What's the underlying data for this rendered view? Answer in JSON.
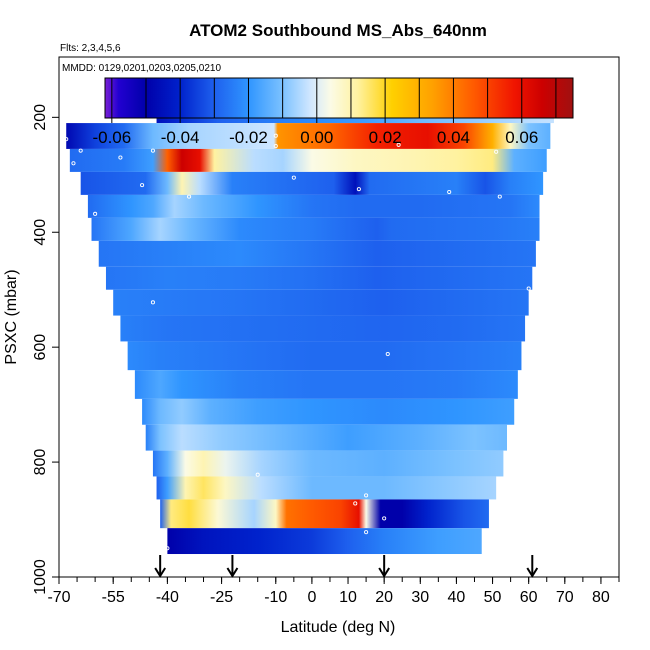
{
  "title": "ATOM2 Southbound MS_Abs_640nm",
  "subtitle": "Flts: 2,3,4,5,6",
  "mmdd_label": "MMDD: 0129,0201,0203,0205,0210",
  "xlabel": "Latitude (deg N)",
  "ylabel": "PSXC (mbar)",
  "chart_data": {
    "type": "heatmap",
    "title": "ATOM2 Southbound MS_Abs_640nm",
    "xlabel": "Latitude (deg N)",
    "ylabel": "PSXC (mbar)",
    "xlim": [
      -70,
      85
    ],
    "ylim": [
      1000,
      95
    ],
    "y_reversed": true,
    "x_ticks": [
      "-70",
      "-55",
      "-40",
      "-25",
      "-10",
      "0",
      "10",
      "20",
      "30",
      "40",
      "50",
      "60",
      "70",
      "80"
    ],
    "x_tick_values": [
      -70,
      -55,
      -40,
      -25,
      -10,
      0,
      10,
      20,
      30,
      40,
      50,
      60,
      70,
      80
    ],
    "y_ticks": [
      200,
      400,
      600,
      800,
      1000
    ],
    "colorbar": {
      "ticks": [
        "-0.06",
        "-0.04",
        "-0.02",
        "0.00",
        "0.02",
        "0.04",
        "0.06"
      ],
      "tick_values": [
        -0.06,
        -0.04,
        -0.02,
        0.0,
        0.02,
        0.04,
        0.06
      ],
      "range": [
        -0.062,
        0.075
      ],
      "stops": [
        {
          "v": -0.062,
          "c": "#7a1fd6"
        },
        {
          "v": -0.058,
          "c": "#2200d0"
        },
        {
          "v": -0.05,
          "c": "#0000aa"
        },
        {
          "v": -0.04,
          "c": "#0022cc"
        },
        {
          "v": -0.03,
          "c": "#1e60ee"
        },
        {
          "v": -0.02,
          "c": "#2f95ff"
        },
        {
          "v": -0.01,
          "c": "#7cc2ff"
        },
        {
          "v": -0.002,
          "c": "#cfe6ff"
        },
        {
          "v": 0.004,
          "c": "#fbfbe6"
        },
        {
          "v": 0.012,
          "c": "#fff2a0"
        },
        {
          "v": 0.022,
          "c": "#ffd000"
        },
        {
          "v": 0.034,
          "c": "#ffa000"
        },
        {
          "v": 0.046,
          "c": "#ff5a00"
        },
        {
          "v": 0.058,
          "c": "#f01400"
        },
        {
          "v": 0.066,
          "c": "#cc0000"
        },
        {
          "v": 0.075,
          "c": "#a01010"
        }
      ]
    },
    "flight_markers_lat": [
      -42,
      -22,
      20,
      61
    ],
    "bands": [
      {
        "p_top": 165,
        "p_bot": 210,
        "lat_min": -43,
        "lat_max": 67,
        "segments": [
          {
            "lat": -43,
            "v": -0.045
          },
          {
            "lat": -36,
            "v": -0.038
          },
          {
            "lat": -26,
            "v": -0.03
          },
          {
            "lat": -12,
            "v": -0.025
          },
          {
            "lat": 0,
            "v": -0.022
          },
          {
            "lat": 15,
            "v": -0.018
          },
          {
            "lat": 30,
            "v": -0.012
          },
          {
            "lat": 45,
            "v": -0.008
          },
          {
            "lat": 60,
            "v": -0.004
          },
          {
            "lat": 67,
            "v": -0.003
          }
        ]
      },
      {
        "p_top": 210,
        "p_bot": 255,
        "lat_min": -68,
        "lat_max": 66,
        "segments": [
          {
            "lat": -68,
            "v": -0.048
          },
          {
            "lat": -60,
            "v": -0.035
          },
          {
            "lat": -52,
            "v": -0.028
          },
          {
            "lat": -44,
            "v": -0.012
          },
          {
            "lat": -34,
            "v": -0.006
          },
          {
            "lat": -22,
            "v": -0.004
          },
          {
            "lat": -10.5,
            "v": -0.002
          },
          {
            "lat": -9.5,
            "v": 0.036
          },
          {
            "lat": 5,
            "v": 0.044
          },
          {
            "lat": 18,
            "v": 0.056
          },
          {
            "lat": 32,
            "v": 0.06
          },
          {
            "lat": 42,
            "v": 0.05
          },
          {
            "lat": 50,
            "v": 0.03
          },
          {
            "lat": 55,
            "v": 0.008
          },
          {
            "lat": 60,
            "v": -0.01
          },
          {
            "lat": 66,
            "v": -0.014
          }
        ]
      },
      {
        "p_top": 255,
        "p_bot": 295,
        "lat_min": -67,
        "lat_max": 65,
        "segments": [
          {
            "lat": -67,
            "v": -0.028
          },
          {
            "lat": -52,
            "v": -0.025
          },
          {
            "lat": -44,
            "v": -0.018
          },
          {
            "lat": -40,
            "v": 0.045
          },
          {
            "lat": -36,
            "v": 0.066
          },
          {
            "lat": -31,
            "v": 0.06
          },
          {
            "lat": -27,
            "v": 0.012
          },
          {
            "lat": -16,
            "v": -0.004
          },
          {
            "lat": -8,
            "v": -0.006
          },
          {
            "lat": 0,
            "v": 0.004
          },
          {
            "lat": 12,
            "v": 0.008
          },
          {
            "lat": 28,
            "v": 0.01
          },
          {
            "lat": 40,
            "v": 0.012
          },
          {
            "lat": 50,
            "v": 0.014
          },
          {
            "lat": 56,
            "v": -0.014
          },
          {
            "lat": 65,
            "v": -0.018
          }
        ]
      },
      {
        "p_top": 295,
        "p_bot": 335,
        "lat_min": -64,
        "lat_max": 64,
        "segments": [
          {
            "lat": -64,
            "v": -0.032
          },
          {
            "lat": -46,
            "v": -0.028
          },
          {
            "lat": -40,
            "v": -0.012
          },
          {
            "lat": -36,
            "v": 0.01
          },
          {
            "lat": -31,
            "v": -0.004
          },
          {
            "lat": -22,
            "v": -0.024
          },
          {
            "lat": 6,
            "v": -0.03
          },
          {
            "lat": 12,
            "v": -0.045
          },
          {
            "lat": 16,
            "v": -0.028
          },
          {
            "lat": 40,
            "v": -0.024
          },
          {
            "lat": 48,
            "v": -0.032
          },
          {
            "lat": 55,
            "v": -0.024
          },
          {
            "lat": 64,
            "v": -0.02
          }
        ]
      },
      {
        "p_top": 335,
        "p_bot": 375,
        "lat_min": -62,
        "lat_max": 63,
        "segments": [
          {
            "lat": -62,
            "v": -0.028
          },
          {
            "lat": -50,
            "v": -0.02
          },
          {
            "lat": -44,
            "v": -0.016
          },
          {
            "lat": -38,
            "v": -0.006
          },
          {
            "lat": -30,
            "v": -0.012
          },
          {
            "lat": -15,
            "v": -0.02
          },
          {
            "lat": 0,
            "v": -0.026
          },
          {
            "lat": 12,
            "v": -0.028
          },
          {
            "lat": 30,
            "v": -0.028
          },
          {
            "lat": 55,
            "v": -0.026
          },
          {
            "lat": 63,
            "v": -0.022
          }
        ]
      },
      {
        "p_top": 375,
        "p_bot": 415,
        "lat_min": -61,
        "lat_max": 63,
        "segments": [
          {
            "lat": -61,
            "v": -0.026
          },
          {
            "lat": -50,
            "v": -0.016
          },
          {
            "lat": -42,
            "v": -0.006
          },
          {
            "lat": -34,
            "v": -0.012
          },
          {
            "lat": -20,
            "v": -0.022
          },
          {
            "lat": 0,
            "v": -0.025
          },
          {
            "lat": 18,
            "v": -0.03
          },
          {
            "lat": 22,
            "v": -0.028
          },
          {
            "lat": 50,
            "v": -0.026
          },
          {
            "lat": 63,
            "v": -0.024
          }
        ]
      },
      {
        "p_top": 415,
        "p_bot": 460,
        "lat_min": -59,
        "lat_max": 62,
        "segments": [
          {
            "lat": -59,
            "v": -0.026
          },
          {
            "lat": -40,
            "v": -0.024
          },
          {
            "lat": -20,
            "v": -0.022
          },
          {
            "lat": 0,
            "v": -0.026
          },
          {
            "lat": 18,
            "v": -0.03
          },
          {
            "lat": 40,
            "v": -0.028
          },
          {
            "lat": 62,
            "v": -0.026
          }
        ]
      },
      {
        "p_top": 460,
        "p_bot": 500,
        "lat_min": -57,
        "lat_max": 61,
        "segments": [
          {
            "lat": -57,
            "v": -0.026
          },
          {
            "lat": -40,
            "v": -0.024
          },
          {
            "lat": -20,
            "v": -0.025
          },
          {
            "lat": 0,
            "v": -0.027
          },
          {
            "lat": 18,
            "v": -0.03
          },
          {
            "lat": 40,
            "v": -0.028
          },
          {
            "lat": 61,
            "v": -0.026
          }
        ]
      },
      {
        "p_top": 500,
        "p_bot": 545,
        "lat_min": -55,
        "lat_max": 60,
        "segments": [
          {
            "lat": -55,
            "v": -0.024
          },
          {
            "lat": -40,
            "v": -0.025
          },
          {
            "lat": -20,
            "v": -0.026
          },
          {
            "lat": 0,
            "v": -0.028
          },
          {
            "lat": 20,
            "v": -0.03
          },
          {
            "lat": 40,
            "v": -0.028
          },
          {
            "lat": 60,
            "v": -0.026
          }
        ]
      },
      {
        "p_top": 545,
        "p_bot": 590,
        "lat_min": -53,
        "lat_max": 59,
        "segments": [
          {
            "lat": -53,
            "v": -0.024
          },
          {
            "lat": -40,
            "v": -0.026
          },
          {
            "lat": -20,
            "v": -0.027
          },
          {
            "lat": 0,
            "v": -0.028
          },
          {
            "lat": 20,
            "v": -0.029
          },
          {
            "lat": 40,
            "v": -0.028
          },
          {
            "lat": 59,
            "v": -0.026
          }
        ]
      },
      {
        "p_top": 590,
        "p_bot": 640,
        "lat_min": -51,
        "lat_max": 58,
        "segments": [
          {
            "lat": -51,
            "v": -0.022
          },
          {
            "lat": -42,
            "v": -0.024
          },
          {
            "lat": -20,
            "v": -0.026
          },
          {
            "lat": 0,
            "v": -0.028
          },
          {
            "lat": 20,
            "v": -0.028
          },
          {
            "lat": 40,
            "v": -0.026
          },
          {
            "lat": 58,
            "v": -0.024
          }
        ]
      },
      {
        "p_top": 640,
        "p_bot": 690,
        "lat_min": -49,
        "lat_max": 57,
        "segments": [
          {
            "lat": -49,
            "v": -0.022
          },
          {
            "lat": -42,
            "v": -0.016
          },
          {
            "lat": -36,
            "v": -0.02
          },
          {
            "lat": -20,
            "v": -0.024
          },
          {
            "lat": 0,
            "v": -0.026
          },
          {
            "lat": 20,
            "v": -0.026
          },
          {
            "lat": 40,
            "v": -0.025
          },
          {
            "lat": 57,
            "v": -0.022
          }
        ]
      },
      {
        "p_top": 690,
        "p_bot": 735,
        "lat_min": -47,
        "lat_max": 56,
        "segments": [
          {
            "lat": -47,
            "v": -0.022
          },
          {
            "lat": -42,
            "v": -0.012
          },
          {
            "lat": -36,
            "v": -0.008
          },
          {
            "lat": -28,
            "v": -0.014
          },
          {
            "lat": -15,
            "v": -0.018
          },
          {
            "lat": 0,
            "v": -0.02
          },
          {
            "lat": 20,
            "v": -0.022
          },
          {
            "lat": 40,
            "v": -0.02
          },
          {
            "lat": 56,
            "v": -0.018
          }
        ]
      },
      {
        "p_top": 735,
        "p_bot": 780,
        "lat_min": -46,
        "lat_max": 54,
        "segments": [
          {
            "lat": -46,
            "v": -0.024
          },
          {
            "lat": -42,
            "v": -0.01
          },
          {
            "lat": -36,
            "v": -0.004
          },
          {
            "lat": -25,
            "v": -0.008
          },
          {
            "lat": -10,
            "v": -0.012
          },
          {
            "lat": 10,
            "v": -0.018
          },
          {
            "lat": 30,
            "v": -0.014
          },
          {
            "lat": 45,
            "v": -0.01
          },
          {
            "lat": 54,
            "v": -0.012
          }
        ]
      },
      {
        "p_top": 780,
        "p_bot": 825,
        "lat_min": -44,
        "lat_max": 53,
        "segments": [
          {
            "lat": -44,
            "v": -0.026
          },
          {
            "lat": -40,
            "v": -0.014
          },
          {
            "lat": -35,
            "v": 0.004
          },
          {
            "lat": -30,
            "v": 0.01
          },
          {
            "lat": -24,
            "v": 0.002
          },
          {
            "lat": -14,
            "v": -0.006
          },
          {
            "lat": 0,
            "v": -0.012
          },
          {
            "lat": 20,
            "v": -0.014
          },
          {
            "lat": 40,
            "v": -0.01
          },
          {
            "lat": 53,
            "v": -0.008
          }
        ]
      },
      {
        "p_top": 825,
        "p_bot": 865,
        "lat_min": -43,
        "lat_max": 51,
        "segments": [
          {
            "lat": -43,
            "v": -0.03
          },
          {
            "lat": -40,
            "v": -0.018
          },
          {
            "lat": -35,
            "v": 0.01
          },
          {
            "lat": -30,
            "v": 0.016
          },
          {
            "lat": -24,
            "v": 0.008
          },
          {
            "lat": -14,
            "v": -0.004
          },
          {
            "lat": 0,
            "v": -0.012
          },
          {
            "lat": 20,
            "v": -0.012
          },
          {
            "lat": 40,
            "v": -0.008
          },
          {
            "lat": 51,
            "v": -0.006
          }
        ]
      },
      {
        "p_top": 865,
        "p_bot": 915,
        "lat_min": -42,
        "lat_max": 49,
        "segments": [
          {
            "lat": -42,
            "v": -0.03
          },
          {
            "lat": -39,
            "v": 0.014
          },
          {
            "lat": -34,
            "v": 0.018
          },
          {
            "lat": -26,
            "v": 0.006
          },
          {
            "lat": -16,
            "v": -0.006
          },
          {
            "lat": -10,
            "v": 0.008
          },
          {
            "lat": -7,
            "v": 0.042
          },
          {
            "lat": 0,
            "v": 0.046
          },
          {
            "lat": 8,
            "v": 0.05
          },
          {
            "lat": 13,
            "v": 0.06
          },
          {
            "lat": 15,
            "v": 0.004
          },
          {
            "lat": 19,
            "v": -0.05
          },
          {
            "lat": 25,
            "v": -0.05
          },
          {
            "lat": 32,
            "v": -0.04
          },
          {
            "lat": 42,
            "v": -0.032
          },
          {
            "lat": 49,
            "v": -0.028
          }
        ]
      },
      {
        "p_top": 915,
        "p_bot": 960,
        "lat_min": -40,
        "lat_max": 47,
        "segments": [
          {
            "lat": -40,
            "v": -0.05
          },
          {
            "lat": -30,
            "v": -0.044
          },
          {
            "lat": -15,
            "v": -0.04
          },
          {
            "lat": 0,
            "v": -0.036
          },
          {
            "lat": 10,
            "v": -0.03
          },
          {
            "lat": 20,
            "v": -0.024
          },
          {
            "lat": 35,
            "v": -0.018
          },
          {
            "lat": 47,
            "v": -0.016
          }
        ]
      }
    ],
    "sample_points": [
      {
        "lat": -41,
        "p": 175
      },
      {
        "lat": -68,
        "p": 238
      },
      {
        "lat": -64,
        "p": 258
      },
      {
        "lat": -53,
        "p": 270
      },
      {
        "lat": -66,
        "p": 280
      },
      {
        "lat": -44,
        "p": 258
      },
      {
        "lat": -10,
        "p": 232
      },
      {
        "lat": -10,
        "p": 250
      },
      {
        "lat": 24,
        "p": 248
      },
      {
        "lat": 51,
        "p": 260
      },
      {
        "lat": -5,
        "p": 305
      },
      {
        "lat": -47,
        "p": 318
      },
      {
        "lat": -34,
        "p": 338
      },
      {
        "lat": 13,
        "p": 325
      },
      {
        "lat": 38,
        "p": 330
      },
      {
        "lat": 52,
        "p": 338
      },
      {
        "lat": -60,
        "p": 368
      },
      {
        "lat": 60,
        "p": 498
      },
      {
        "lat": -44,
        "p": 522
      },
      {
        "lat": 21,
        "p": 612
      },
      {
        "lat": -15,
        "p": 822
      },
      {
        "lat": 15,
        "p": 858
      },
      {
        "lat": 12,
        "p": 872
      },
      {
        "lat": 20,
        "p": 898
      },
      {
        "lat": 15,
        "p": 922
      },
      {
        "lat": -40,
        "p": 950
      }
    ]
  }
}
